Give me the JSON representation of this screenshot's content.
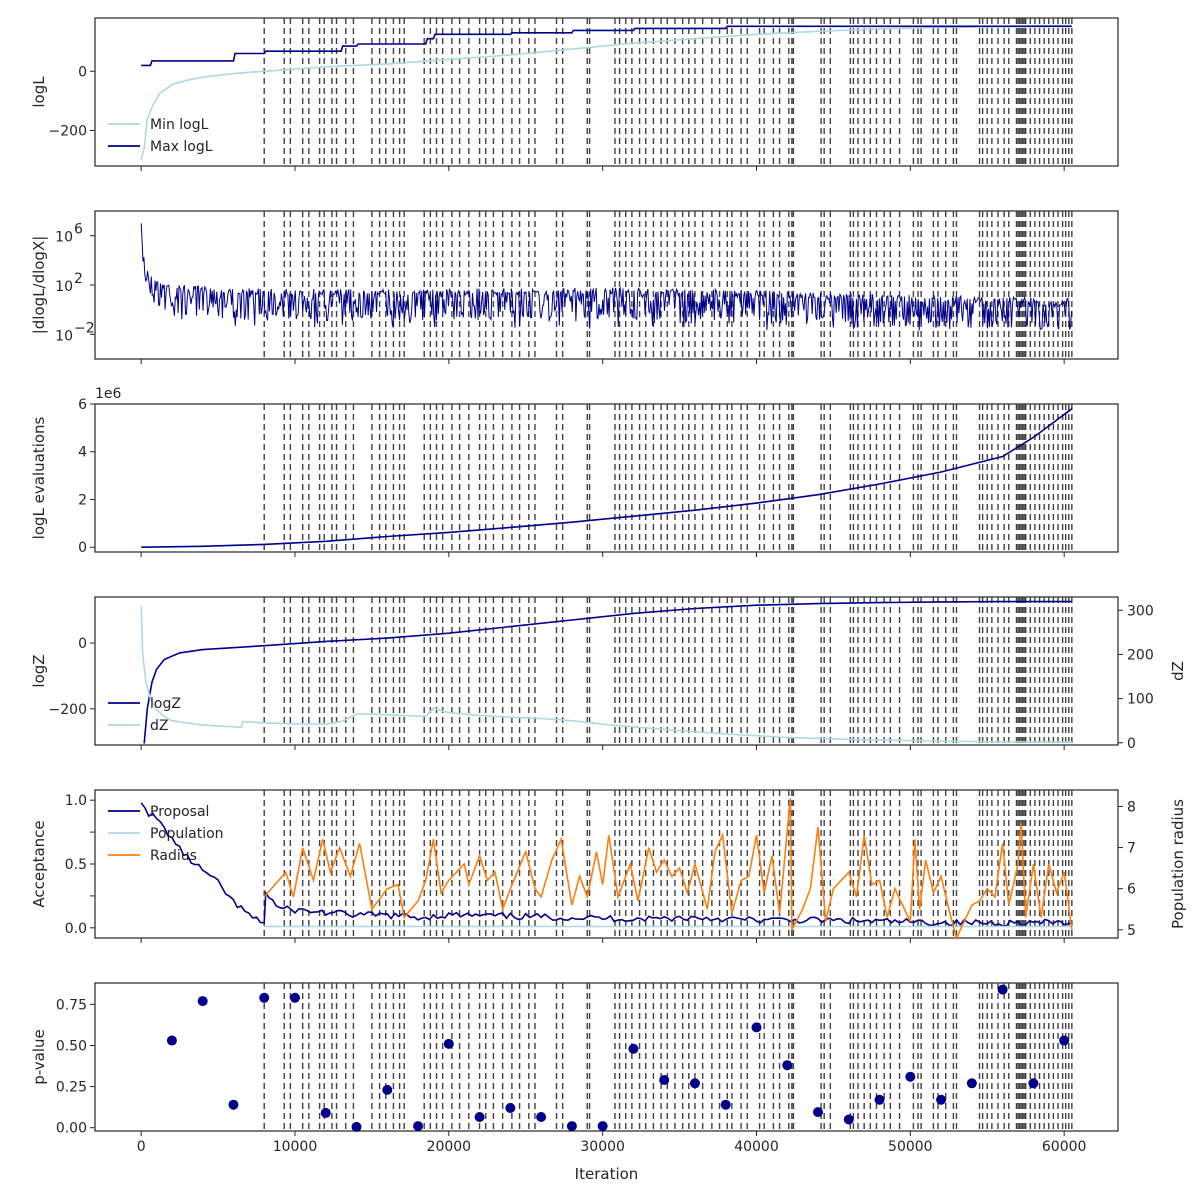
{
  "colors": {
    "navy": "#00008b",
    "light_blue": "#add8e6",
    "orange": "#ff7f0e",
    "insertion_line": "#404040",
    "axis": "#262626"
  },
  "chart_data": [
    {
      "type": "line",
      "ylabel": "logL",
      "ylim": [
        -320,
        180
      ],
      "yticks": [
        0,
        -200
      ],
      "ytick_labels": [
        "0",
        "−200"
      ],
      "legend_placement": "lower-left",
      "series": [
        {
          "name": "Min logL",
          "color": "#add8e6",
          "x": [
            0,
            200,
            400,
            800,
            1200,
            2000,
            3000,
            4000,
            6000,
            8000,
            12000,
            16000,
            20000,
            24000,
            28000,
            32000,
            36000,
            40000,
            44000,
            48000,
            52000,
            56000,
            60500
          ],
          "y": [
            -300,
            -260,
            -160,
            -110,
            -75,
            -45,
            -30,
            -20,
            -8,
            0,
            15,
            25,
            40,
            55,
            75,
            95,
            110,
            125,
            135,
            143,
            148,
            152,
            155
          ]
        },
        {
          "name": "Max logL",
          "color": "#00008b",
          "x": [
            0,
            600,
            700,
            6000,
            6100,
            8000,
            8100,
            13000,
            13100,
            14000,
            14100,
            18500,
            18600,
            19000,
            19100,
            24000,
            24100,
            28000,
            28100,
            32000,
            32100,
            38000,
            38100,
            60500
          ],
          "y": [
            20,
            20,
            35,
            35,
            60,
            60,
            68,
            68,
            85,
            85,
            92,
            92,
            110,
            110,
            125,
            125,
            130,
            130,
            138,
            138,
            145,
            145,
            152,
            152
          ]
        }
      ]
    },
    {
      "type": "line",
      "ylabel": "|dlogL/dlogX|",
      "yscale": "log",
      "ylim_log10": [
        -4,
        8
      ],
      "yticks_log10": [
        6,
        2,
        -2
      ],
      "ytick_labels": [
        "10",
        "10",
        "10"
      ],
      "ytick_exponents": [
        "6",
        "2",
        "−2"
      ],
      "series": [
        {
          "name": "",
          "color": "#00008b",
          "x": [
            0,
            100,
            300,
            800,
            2000,
            5000,
            10000,
            20000,
            30000,
            40000,
            50000,
            60500
          ],
          "y_log10_center": [
            7,
            4.5,
            2.8,
            2.2,
            1.6,
            1.3,
            1.2,
            1.2,
            1.2,
            1.0,
            0.6,
            0.3
          ],
          "y_log10_low": [
            7,
            3.5,
            1.8,
            0.0,
            -1.0,
            -1.3,
            -1.5,
            -1.5,
            -1.6,
            -1.8,
            -2.0,
            -2.2
          ],
          "y_log10_high": [
            7,
            5.0,
            3.5,
            2.8,
            2.1,
            1.8,
            1.7,
            1.7,
            1.8,
            1.6,
            1.2,
            1.0
          ]
        }
      ]
    },
    {
      "type": "line",
      "ylabel": "logL evaluations",
      "ylim": [
        -0.2,
        6.0
      ],
      "yticks": [
        0,
        2,
        4,
        6
      ],
      "ytick_labels": [
        "0",
        "2",
        "4",
        "6"
      ],
      "offset_text": "1e6",
      "series": [
        {
          "name": "",
          "color": "#00008b",
          "x": [
            0,
            4000,
            8000,
            12000,
            16000,
            20000,
            24000,
            28000,
            32000,
            36000,
            40000,
            44000,
            48000,
            52000,
            56000,
            58000,
            60500
          ],
          "y": [
            0,
            0.04,
            0.12,
            0.25,
            0.45,
            0.62,
            0.83,
            1.05,
            1.3,
            1.55,
            1.85,
            2.2,
            2.65,
            3.15,
            3.8,
            4.6,
            5.8
          ]
        }
      ]
    },
    {
      "type": "line",
      "ylabel": "logZ",
      "ylabel_right": "dZ",
      "ylim": [
        -310,
        140
      ],
      "yticks": [
        0,
        -200
      ],
      "ytick_labels": [
        "0",
        "−200"
      ],
      "ylim_right": [
        -5,
        330
      ],
      "yticks_right": [
        0,
        100,
        200,
        300
      ],
      "ytick_labels_right": [
        "0",
        "100",
        "200",
        "300"
      ],
      "legend_placement": "lower-left",
      "series": [
        {
          "name": "logZ",
          "color": "#00008b",
          "axis": "left",
          "x": [
            200,
            400,
            700,
            1000,
            1500,
            2500,
            4000,
            8000,
            12000,
            16000,
            20000,
            24000,
            28000,
            32000,
            36000,
            40000,
            44000,
            48000,
            52000,
            56000,
            60500
          ],
          "y": [
            -305,
            -200,
            -120,
            -80,
            -50,
            -30,
            -20,
            -8,
            5,
            15,
            30,
            50,
            70,
            90,
            105,
            115,
            120,
            123,
            125,
            126,
            126
          ]
        },
        {
          "name": "dZ",
          "color": "#add8e6",
          "axis": "right",
          "x": [
            0,
            100,
            300,
            600,
            1000,
            1500,
            2000,
            3000,
            4000,
            5000,
            6500,
            6600,
            8000,
            10000,
            12000,
            13000,
            14000,
            15000,
            17000,
            18500,
            19000,
            20000,
            22000,
            24000,
            26000,
            28000,
            30000,
            34000,
            38000,
            42000,
            46000,
            50000,
            54000,
            58000,
            60500
          ],
          "y": [
            310,
            200,
            140,
            100,
            75,
            60,
            50,
            45,
            40,
            38,
            35,
            48,
            45,
            43,
            42,
            48,
            65,
            65,
            62,
            60,
            78,
            68,
            62,
            58,
            55,
            50,
            42,
            30,
            20,
            12,
            8,
            5,
            3,
            2,
            2
          ]
        }
      ]
    },
    {
      "type": "line",
      "ylabel": "Acceptance",
      "ylabel_right": "Population radius",
      "ylim": [
        -0.08,
        1.08
      ],
      "yticks": [
        0,
        0.5,
        1.0
      ],
      "ytick_labels": [
        "0.0",
        "0.5",
        "1.0"
      ],
      "extra_yticks": [
        0.25,
        0.75
      ],
      "extra_ytick_labels": [
        "",
        ""
      ],
      "ylim_right": [
        4.8,
        8.4
      ],
      "yticks_right": [
        5,
        6,
        7,
        8
      ],
      "ytick_labels_right": [
        "5",
        "6",
        "7",
        "8"
      ],
      "legend_placement": "upper-left",
      "series": [
        {
          "name": "Proposal",
          "color": "#00008b",
          "axis": "left",
          "x": [
            0,
            500,
            1000,
            1500,
            2000,
            2500,
            3000,
            4000,
            5000,
            6000,
            7000,
            7500,
            8000,
            8100,
            9000,
            10000,
            12000,
            14000,
            16000,
            18000,
            20000,
            24000,
            28000,
            32000,
            36000,
            40000,
            44000,
            48000,
            52000,
            56000,
            60500
          ],
          "y": [
            0.98,
            0.9,
            0.85,
            0.78,
            0.7,
            0.62,
            0.55,
            0.45,
            0.35,
            0.2,
            0.1,
            0.06,
            0.05,
            0.27,
            0.15,
            0.14,
            0.12,
            0.1,
            0.1,
            0.08,
            0.1,
            0.09,
            0.08,
            0.07,
            0.08,
            0.06,
            0.06,
            0.05,
            0.04,
            0.04,
            0.04
          ]
        },
        {
          "name": "Population",
          "color": "#add8e6",
          "axis": "left",
          "x": [
            8000,
            60500
          ],
          "y": [
            0.01,
            0.01
          ]
        },
        {
          "name": "Radius",
          "color": "#ff7f0e",
          "axis": "right",
          "x": [
            8000,
            9400,
            9900,
            10500,
            11200,
            11800,
            12300,
            12900,
            13600,
            14200,
            15000,
            16000,
            16700,
            17100,
            18000,
            18500,
            19000,
            19500,
            20000,
            21000,
            21300,
            22000,
            22500,
            23000,
            23500,
            24000,
            25000,
            25600,
            26000,
            26700,
            27300,
            28000,
            28500,
            29000,
            29600,
            30000,
            30400,
            31000,
            31800,
            32300,
            33000,
            33500,
            34000,
            34500,
            35000,
            35500,
            36000,
            36800,
            37300,
            37800,
            38400,
            39000,
            39500,
            40000,
            40500,
            41000,
            41500,
            42200,
            42300,
            43000,
            43500,
            44000,
            44500,
            45000,
            46000,
            46500,
            47000,
            47500,
            48000,
            48500,
            49000,
            50000,
            50300,
            50600,
            51000,
            51500,
            52000,
            52500,
            53000,
            53500,
            54000,
            54500,
            55000,
            55500,
            56000,
            56400,
            57000,
            57200,
            57500,
            58000,
            58500,
            59000,
            59500,
            60000,
            60500
          ],
          "y": [
            5.8,
            6.4,
            5.8,
            7.0,
            6.2,
            7.2,
            6.4,
            7.0,
            6.3,
            7.1,
            5.5,
            6.0,
            6.1,
            5.3,
            5.7,
            6.2,
            7.2,
            5.9,
            6.2,
            6.6,
            6.1,
            6.8,
            6.2,
            6.4,
            5.5,
            6.0,
            6.9,
            6.0,
            5.8,
            6.7,
            7.2,
            5.6,
            6.3,
            5.8,
            6.9,
            6.1,
            7.3,
            5.8,
            6.6,
            5.7,
            7.0,
            6.4,
            6.7,
            6.3,
            6.5,
            5.9,
            6.6,
            5.5,
            6.9,
            7.3,
            5.4,
            6.2,
            6.3,
            7.3,
            5.9,
            6.8,
            5.4,
            8.2,
            5.0,
            5.5,
            6.0,
            7.5,
            5.2,
            6.0,
            6.4,
            5.8,
            7.3,
            6.1,
            6.2,
            5.3,
            6.0,
            5.2,
            7.2,
            5.5,
            6.7,
            5.9,
            6.3,
            5.5,
            4.8,
            5.2,
            5.6,
            5.7,
            6.0,
            5.8,
            7.1,
            5.6,
            6.6,
            7.6,
            5.3,
            6.6,
            5.3,
            6.6,
            5.9,
            6.4,
            5.0
          ]
        }
      ]
    },
    {
      "type": "scatter",
      "ylabel": "p-value",
      "xlabel": "Iteration",
      "ylim": [
        -0.02,
        0.88
      ],
      "yticks": [
        0.0,
        0.25,
        0.5,
        0.75
      ],
      "ytick_labels": [
        "0.00",
        "0.25",
        "0.50",
        "0.75"
      ],
      "series": [
        {
          "name": "",
          "color": "#00008b",
          "x": [
            2000,
            4000,
            6000,
            8000,
            10000,
            12000,
            14000,
            16000,
            18000,
            20000,
            22000,
            24000,
            26000,
            28000,
            30000,
            32000,
            34000,
            36000,
            38000,
            40000,
            42000,
            44000,
            46000,
            48000,
            50000,
            52000,
            54000,
            56000,
            58000,
            60000
          ],
          "y": [
            0.53,
            0.77,
            0.14,
            0.79,
            0.79,
            0.09,
            0.005,
            0.23,
            0.01,
            0.51,
            0.065,
            0.12,
            0.065,
            0.01,
            0.01,
            0.48,
            0.29,
            0.27,
            0.14,
            0.61,
            0.38,
            0.095,
            0.05,
            0.17,
            0.31,
            0.17,
            0.27,
            0.84,
            0.27,
            0.53
          ]
        }
      ]
    }
  ],
  "shared_x": {
    "xlim": [
      -3000,
      63500
    ],
    "xticks": [
      0,
      10000,
      20000,
      30000,
      40000,
      50000,
      60000
    ],
    "xtick_labels": [
      "0",
      "10000",
      "20000",
      "30000",
      "40000",
      "50000",
      "60000"
    ],
    "xlabel": "Iteration",
    "insertion_iterations": [
      8000,
      9300,
      9700,
      10500,
      10900,
      11600,
      11900,
      12400,
      12700,
      13300,
      13800,
      15000,
      15500,
      15900,
      16400,
      16800,
      17100,
      18400,
      18800,
      19200,
      19600,
      20200,
      20700,
      21300,
      22000,
      22400,
      22900,
      23500,
      24100,
      24600,
      25200,
      25600,
      27000,
      27400,
      29000,
      29150,
      30800,
      31100,
      31500,
      31900,
      32400,
      32800,
      33300,
      33800,
      34200,
      34700,
      35200,
      35600,
      36000,
      36500,
      37100,
      37600,
      38100,
      38400,
      39000,
      39400,
      40200,
      40500,
      41100,
      41500,
      42100,
      42300,
      42400,
      44200,
      44400,
      44800,
      46100,
      46300,
      46600,
      47000,
      47400,
      47800,
      48300,
      48700,
      49300,
      50200,
      50500,
      50700,
      51500,
      51800,
      52300,
      52800,
      53000,
      54500,
      54700,
      55000,
      55300,
      55700,
      56100,
      56400,
      56900,
      57000,
      57100,
      57200,
      57300,
      57400,
      57500,
      57800,
      58100,
      58400,
      58700,
      59000,
      59300,
      59600,
      59900,
      60100,
      60300,
      60500
    ]
  }
}
